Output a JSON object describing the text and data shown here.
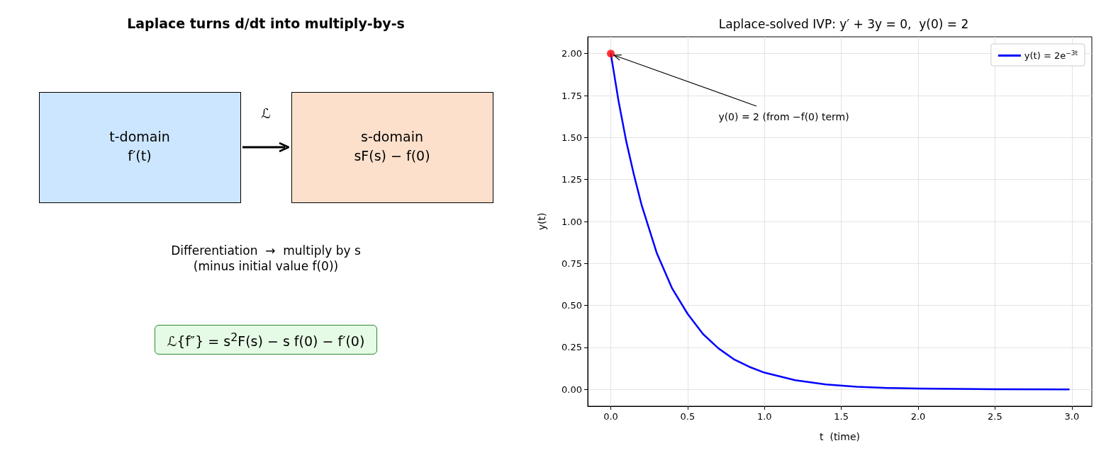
{
  "chart_data": [
    {
      "type": "other",
      "title": "Laplace turns d/dt into multiply-by-s",
      "annotations": [
        "t-domain",
        "f′(t)",
        "ℒ",
        "s-domain",
        "sF(s) − f(0)",
        "Differentiation  →  multiply by s",
        "(minus initial value f(0))",
        "ℒ{f″} = s$^{2}$F(s) − s f(0) − f′(0)"
      ]
    },
    {
      "type": "line",
      "title": "Laplace-solved IVP: y′ + 3y = 0,  y(0) = 2",
      "xlabel": "t  (time)",
      "ylabel": "y(t)",
      "x": [
        0,
        0.05,
        0.1,
        0.15,
        0.2,
        0.3,
        0.4,
        0.5,
        0.6,
        0.7,
        0.8,
        0.9,
        1.0,
        1.2,
        1.4,
        1.6,
        1.8,
        2.0,
        2.5,
        2.98
      ],
      "series": [
        {
          "name": "y(t) = 2e$^{−3t}$",
          "color": "#0000ff",
          "values": [
            2.0,
            1.72,
            1.48,
            1.28,
            1.1,
            0.81,
            0.6,
            0.45,
            0.33,
            0.245,
            0.18,
            0.135,
            0.1,
            0.055,
            0.03,
            0.016,
            0.009,
            0.005,
            0.001,
            0.0
          ]
        },
        {
          "type": "scatter",
          "color": "#ff0000",
          "marker": "circle",
          "x": [
            0
          ],
          "values": [
            2.0
          ]
        }
      ],
      "xlim": [
        -0.15,
        3.13
      ],
      "xticks": [
        {
          "value": 0,
          "label": "0.0"
        },
        {
          "value": 0.5,
          "label": "0.5"
        },
        {
          "value": 1,
          "label": "1.0"
        },
        {
          "value": 1.5,
          "label": "1.5"
        },
        {
          "value": 2,
          "label": "2.0"
        },
        {
          "value": 2.5,
          "label": "2.5"
        },
        {
          "value": 3,
          "label": "3.0"
        }
      ],
      "ylim": [
        -0.1,
        2.1
      ],
      "yticks": [
        {
          "value": 0,
          "label": "0.00"
        },
        {
          "value": 0.25,
          "label": "0.25"
        },
        {
          "value": 0.5,
          "label": "0.50"
        },
        {
          "value": 0.75,
          "label": "0.75"
        },
        {
          "value": 1,
          "label": "1.00"
        },
        {
          "value": 1.25,
          "label": "1.25"
        },
        {
          "value": 1.5,
          "label": "1.50"
        },
        {
          "value": 1.75,
          "label": "1.75"
        },
        {
          "value": 2,
          "label": "2.00"
        }
      ],
      "grid": true,
      "legend": "top right",
      "marker": "none",
      "line_style": "solid",
      "annotations": [
        {
          "text": "y(0) = 2 (from −f(0) term)",
          "x": 0,
          "y": 2
        }
      ]
    }
  ]
}
